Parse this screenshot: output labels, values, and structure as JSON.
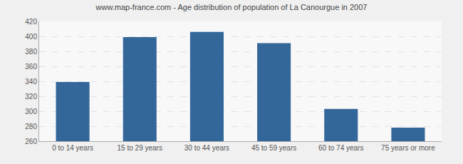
{
  "chart_data": {
    "type": "bar",
    "title": "www.map-france.com - Age distribution of population of La Canourgue in 2007",
    "categories": [
      "0 to 14 years",
      "15 to 29 years",
      "30 to 44 years",
      "45 to 59 years",
      "60 to 74 years",
      "75 years or more"
    ],
    "values": [
      339,
      399,
      406,
      391,
      303,
      278
    ],
    "color": "#336699",
    "ylim": [
      260,
      420
    ],
    "yticks": [
      260,
      280,
      300,
      320,
      340,
      360,
      380,
      400,
      420
    ],
    "grid": true
  }
}
